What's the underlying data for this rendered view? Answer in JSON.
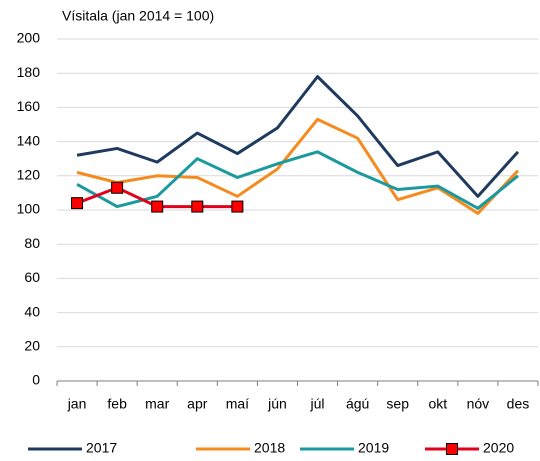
{
  "chart_data": {
    "type": "line",
    "title": "Vísitala (jan 2014 = 100)",
    "categories": [
      "jan",
      "feb",
      "mar",
      "apr",
      "maí",
      "jún",
      "júl",
      "ágú",
      "sep",
      "okt",
      "nóv",
      "des"
    ],
    "series": [
      {
        "name": "2017",
        "color": "#1f3a5f",
        "values": [
          132,
          136,
          128,
          145,
          133,
          148,
          178,
          155,
          126,
          134,
          108,
          134
        ]
      },
      {
        "name": "2018",
        "color": "#f58b1f",
        "values": [
          122,
          116,
          120,
          119,
          108,
          124,
          153,
          142,
          106,
          113,
          98,
          123
        ]
      },
      {
        "name": "2019",
        "color": "#1a9a9e",
        "values": [
          115,
          102,
          108,
          130,
          119,
          127,
          134,
          122,
          112,
          114,
          101,
          120
        ]
      },
      {
        "name": "2020",
        "color": "#e3001b",
        "marker": "square",
        "marker_color": "#ff0000",
        "values": [
          104,
          113,
          102,
          102,
          102,
          null,
          null,
          null,
          null,
          null,
          null,
          null
        ]
      }
    ],
    "ylim": [
      0,
      200
    ],
    "yticks": [
      0,
      20,
      40,
      60,
      80,
      100,
      120,
      140,
      160,
      180,
      200
    ],
    "grid": true,
    "legend": "bottom"
  }
}
